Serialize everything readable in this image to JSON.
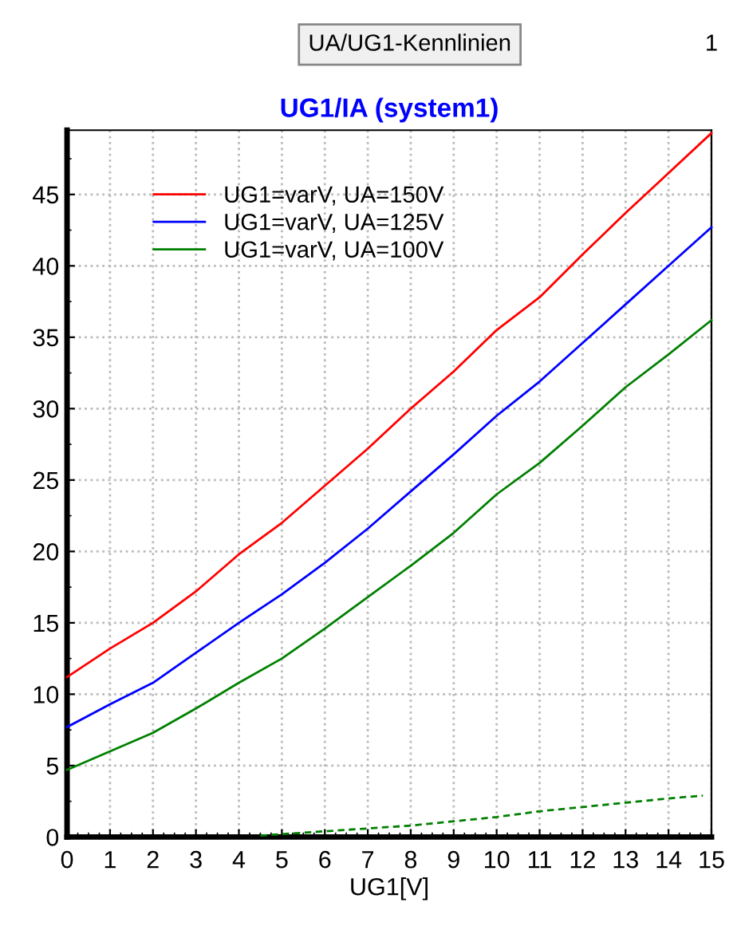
{
  "chart_data": {
    "type": "line",
    "title": "UG1/IA (system1)",
    "xlabel": "UG1[V]",
    "annotations": [
      "UA/UG1-Kennlinien",
      "1"
    ],
    "xlim": [
      0,
      15
    ],
    "ylim": [
      0,
      49.5
    ],
    "xticks": [
      0,
      1,
      2,
      3,
      4,
      5,
      6,
      7,
      8,
      9,
      10,
      11,
      12,
      13,
      14,
      15
    ],
    "yticks": [
      0,
      5,
      10,
      15,
      20,
      25,
      30,
      35,
      40,
      45
    ],
    "grid": true,
    "legend": "top left",
    "marker": "none",
    "x": [
      0,
      1,
      2,
      3,
      4,
      5,
      6,
      7,
      8,
      9,
      10,
      11,
      12,
      13,
      14,
      15
    ],
    "series": [
      {
        "name": "UG1=varV, UA=150V",
        "color": "#ff0000",
        "values": [
          11.2,
          13.2,
          15.0,
          17.2,
          19.8,
          22.0,
          24.6,
          27.2,
          30.0,
          32.6,
          35.5,
          37.8,
          40.8,
          43.7,
          46.5,
          49.3
        ]
      },
      {
        "name": "UG1=varV, UA=125V",
        "color": "#0000ff",
        "values": [
          7.7,
          9.3,
          10.8,
          12.9,
          15.0,
          17.0,
          19.2,
          21.6,
          24.2,
          26.8,
          29.5,
          31.9,
          34.6,
          37.3,
          40.0,
          42.7
        ]
      },
      {
        "name": "UG1=varV, UA=100V",
        "color": "#008000",
        "values": [
          4.7,
          6.0,
          7.3,
          9.0,
          10.8,
          12.5,
          14.6,
          16.8,
          19.0,
          21.3,
          24.0,
          26.2,
          28.8,
          31.5,
          33.8,
          36.2
        ]
      },
      {
        "color": "#008000",
        "line_style": "dashed",
        "x": [
          4.5,
          5,
          6,
          7,
          8,
          9,
          10,
          11,
          12,
          13,
          14,
          14.8
        ],
        "values": [
          0.1,
          0.2,
          0.4,
          0.6,
          0.8,
          1.1,
          1.4,
          1.8,
          2.1,
          2.4,
          2.7,
          2.9
        ]
      }
    ]
  }
}
